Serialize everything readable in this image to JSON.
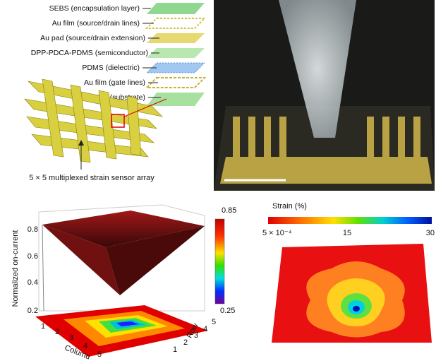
{
  "layers": [
    "SEBS (encapsulation layer)",
    "Au film (source/drain lines)",
    "Au pad (source/drain extension)",
    "DPP-PDCA-PDMS (semiconductor)",
    "PDMS (dielectric)",
    "Au film (gate lines)",
    "SEBS (substrate)"
  ],
  "caption": "5 × 5 multiplexed strain sensor array",
  "surface_plot": {
    "z_label": "Normalized on-current",
    "z_ticks": [
      0.2,
      0.4,
      0.6,
      0.8
    ],
    "column_label": "Columu",
    "row_label": "Row",
    "column_ticks": [
      1,
      2,
      3,
      4,
      5
    ],
    "row_ticks": [
      1,
      2,
      3,
      4,
      5
    ],
    "colorbar_max": 0.85,
    "colorbar_min": 0.25
  },
  "strain_map": {
    "title": "Strain (%)",
    "ticks": [
      "5 × 10⁻⁴",
      15,
      30
    ]
  }
}
